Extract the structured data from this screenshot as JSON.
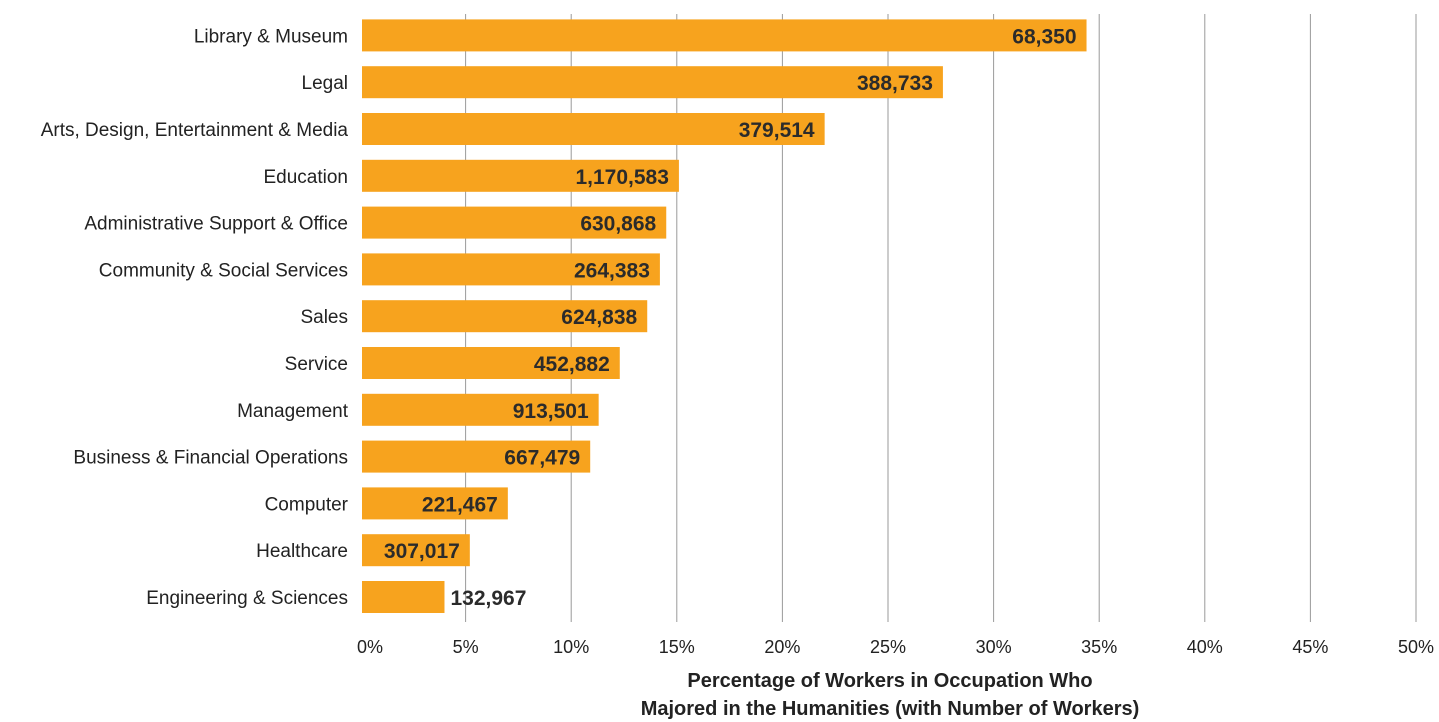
{
  "chart_data": {
    "type": "bar",
    "orientation": "horizontal",
    "categories": [
      "Library & Museum",
      "Legal",
      "Arts, Design, Entertainment & Media",
      "Education",
      "Administrative Support & Office",
      "Community & Social Services",
      "Sales",
      "Service",
      "Management",
      "Business & Financial Operations",
      "Computer",
      "Healthcare",
      "Engineering & Sciences"
    ],
    "values": [
      34.4,
      27.6,
      22.0,
      15.1,
      14.5,
      14.2,
      13.6,
      12.3,
      11.3,
      10.9,
      7.0,
      5.2,
      4.0
    ],
    "data_labels": [
      "68,350",
      "388,733",
      "379,514",
      "1,170,583",
      "630,868",
      "264,383",
      "624,838",
      "452,882",
      "913,501",
      "667,479",
      "221,467",
      "307,017",
      "132,967"
    ],
    "x_ticks": [
      "0%",
      "5%",
      "10%",
      "15%",
      "20%",
      "25%",
      "30%",
      "35%",
      "40%",
      "45%",
      "50%"
    ],
    "xlim": [
      0,
      50
    ],
    "xlabel": [
      "Percentage of Workers in Occupation Who",
      "Majored in the Humanities (with Number of Workers)"
    ],
    "ylabel": "",
    "title": "",
    "grid": "vertical",
    "bar_color": "#F7A31E"
  }
}
